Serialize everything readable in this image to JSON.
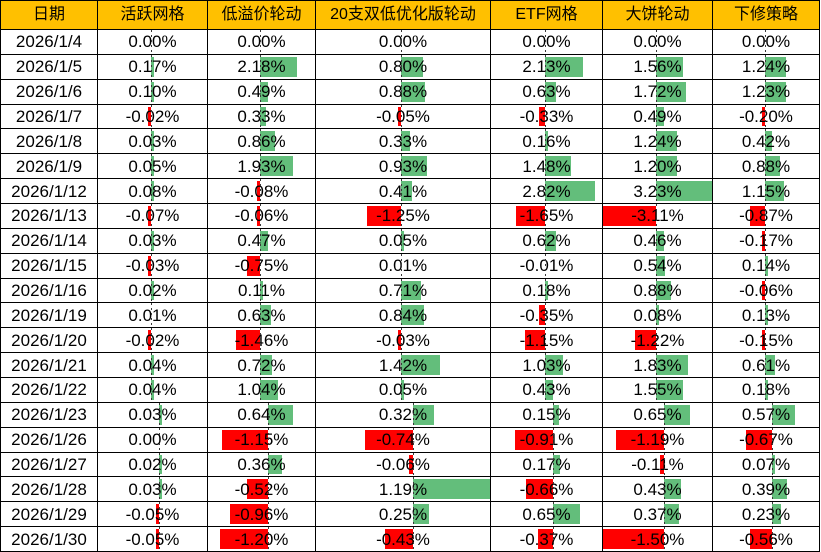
{
  "colors": {
    "header_bg": "#FFC000",
    "positive_bar": "#63BE7B",
    "negative_bar": "#FF0000",
    "gridline": "#000000",
    "text": "#000000"
  },
  "table": {
    "columns": [
      {
        "label": "日期"
      },
      {
        "label": "活跃网格"
      },
      {
        "label": "低溢价轮动"
      },
      {
        "label": "20支双低优化版轮动"
      },
      {
        "label": "ETF网格"
      },
      {
        "label": "大饼轮动"
      },
      {
        "label": "下修策略"
      }
    ],
    "rows": [
      {
        "date": "2026/1/4",
        "values": [
          "0.00%",
          "0.00%",
          "0.00%",
          "0.00%",
          "0.00%",
          "0.00%"
        ]
      },
      {
        "date": "2026/1/5",
        "values": [
          "0.17%",
          "2.18%",
          "0.80%",
          "2.13%",
          "1.56%",
          "1.24%"
        ]
      },
      {
        "date": "2026/1/6",
        "values": [
          "0.10%",
          "0.49%",
          "0.88%",
          "0.63%",
          "1.72%",
          "1.23%"
        ]
      },
      {
        "date": "2026/1/7",
        "values": [
          "-0.02%",
          "0.33%",
          "-0.05%",
          "-0.33%",
          "0.49%",
          "-0.20%"
        ]
      },
      {
        "date": "2026/1/8",
        "values": [
          "0.03%",
          "0.86%",
          "0.33%",
          "0.16%",
          "1.24%",
          "0.42%"
        ]
      },
      {
        "date": "2026/1/9",
        "values": [
          "0.05%",
          "1.93%",
          "0.93%",
          "1.48%",
          "1.20%",
          "0.88%"
        ]
      },
      {
        "date": "2026/1/12",
        "values": [
          "0.08%",
          "-0.08%",
          "0.41%",
          "2.82%",
          "3.23%",
          "1.15%"
        ]
      },
      {
        "date": "2026/1/13",
        "values": [
          "-0.07%",
          "-0.06%",
          "-1.25%",
          "-1.65%",
          "-3.11%",
          "-0.87%"
        ]
      },
      {
        "date": "2026/1/14",
        "values": [
          "0.03%",
          "0.47%",
          "0.05%",
          "0.62%",
          "0.46%",
          "-0.17%"
        ]
      },
      {
        "date": "2026/1/15",
        "values": [
          "-0.03%",
          "-0.75%",
          "0.01%",
          "-0.01%",
          "0.54%",
          "0.14%"
        ]
      },
      {
        "date": "2026/1/16",
        "values": [
          "0.02%",
          "0.11%",
          "0.71%",
          "0.18%",
          "0.88%",
          "-0.06%"
        ]
      },
      {
        "date": "2026/1/19",
        "values": [
          "0.01%",
          "0.63%",
          "0.84%",
          "-0.35%",
          "0.08%",
          "0.13%"
        ]
      },
      {
        "date": "2026/1/20",
        "values": [
          "-0.02%",
          "-1.46%",
          "-0.03%",
          "-1.15%",
          "-1.22%",
          "-0.15%"
        ]
      },
      {
        "date": "2026/1/21",
        "values": [
          "0.04%",
          "0.72%",
          "1.42%",
          "1.03%",
          "1.83%",
          "0.61%"
        ]
      },
      {
        "date": "2026/1/22",
        "values": [
          "0.04%",
          "1.04%",
          "0.05%",
          "0.43%",
          "1.55%",
          "0.18%"
        ]
      },
      {
        "date": "2026/1/23",
        "values": [
          "0.03%",
          "0.64%",
          "0.32%",
          "0.15%",
          "0.65%",
          "0.57%"
        ]
      },
      {
        "date": "2026/1/26",
        "values": [
          "0.00%",
          "-1.15%",
          "-0.74%",
          "-0.91%",
          "-1.19%",
          "-0.67%"
        ]
      },
      {
        "date": "2026/1/27",
        "values": [
          "0.02%",
          "0.36%",
          "-0.06%",
          "0.17%",
          "-0.11%",
          "0.07%"
        ]
      },
      {
        "date": "2026/1/28",
        "values": [
          "0.03%",
          "-0.52%",
          "1.19%",
          "-0.66%",
          "0.43%",
          "0.39%"
        ]
      },
      {
        "date": "2026/1/29",
        "values": [
          "-0.05%",
          "-0.96%",
          "0.25%",
          "0.65%",
          "0.37%",
          "0.23%"
        ]
      },
      {
        "date": "2026/1/30",
        "values": [
          "-0.05%",
          "-1.20%",
          "-0.43%",
          "-0.37%",
          "-1.50%",
          "-0.56%"
        ]
      }
    ]
  }
}
